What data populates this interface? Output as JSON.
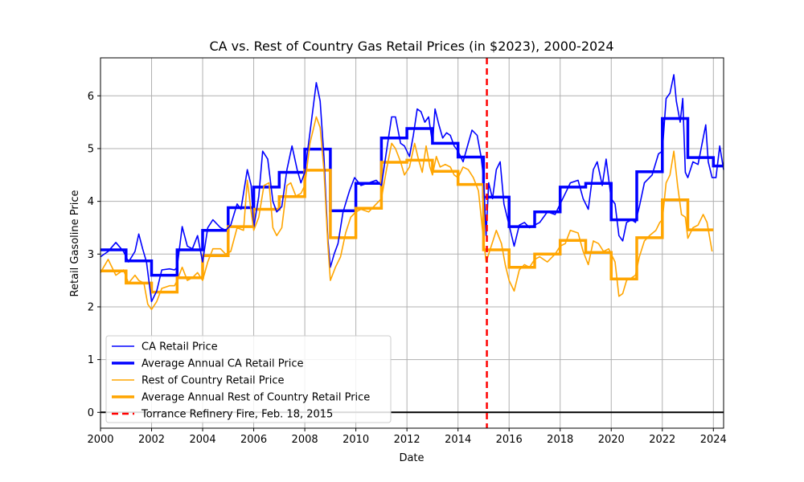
{
  "chart_data": {
    "type": "line",
    "title": "CA vs. Rest of Country Gas Retail Prices (in $2023), 2000-2024",
    "xlabel": "Date",
    "ylabel": "Retail Gasoline Price",
    "xlim": [
      2000,
      2024.4
    ],
    "ylim": [
      -0.3,
      6.72
    ],
    "x_ticks": [
      2000,
      2002,
      2004,
      2006,
      2008,
      2010,
      2012,
      2014,
      2016,
      2018,
      2020,
      2022,
      2024
    ],
    "y_ticks": [
      0,
      1,
      2,
      3,
      4,
      5,
      6
    ],
    "grid": true,
    "legend_location": "lower-left",
    "colors": {
      "ca": "#0000ff",
      "roc": "#ffa500",
      "fire": "#ff0000",
      "zero": "#000000"
    },
    "series": [
      {
        "name": "CA Retail Price",
        "style": "monthly",
        "color": "#0000ff",
        "points": [
          [
            2000.0,
            2.95
          ],
          [
            2000.3,
            3.05
          ],
          [
            2000.6,
            3.22
          ],
          [
            2000.9,
            3.05
          ],
          [
            2001.1,
            2.85
          ],
          [
            2001.35,
            3.05
          ],
          [
            2001.5,
            3.38
          ],
          [
            2001.65,
            3.1
          ],
          [
            2001.8,
            2.85
          ],
          [
            2002.0,
            2.1
          ],
          [
            2002.2,
            2.3
          ],
          [
            2002.4,
            2.7
          ],
          [
            2002.7,
            2.72
          ],
          [
            2002.9,
            2.7
          ],
          [
            2003.0,
            2.75
          ],
          [
            2003.2,
            3.52
          ],
          [
            2003.4,
            3.15
          ],
          [
            2003.6,
            3.1
          ],
          [
            2003.8,
            3.35
          ],
          [
            2004.0,
            2.85
          ],
          [
            2004.2,
            3.5
          ],
          [
            2004.4,
            3.65
          ],
          [
            2004.7,
            3.5
          ],
          [
            2004.9,
            3.45
          ],
          [
            2005.1,
            3.55
          ],
          [
            2005.35,
            3.95
          ],
          [
            2005.5,
            3.85
          ],
          [
            2005.75,
            4.6
          ],
          [
            2005.9,
            4.3
          ],
          [
            2006.0,
            3.5
          ],
          [
            2006.2,
            4.1
          ],
          [
            2006.35,
            4.95
          ],
          [
            2006.55,
            4.8
          ],
          [
            2006.75,
            4.0
          ],
          [
            2006.9,
            3.8
          ],
          [
            2007.1,
            3.9
          ],
          [
            2007.3,
            4.6
          ],
          [
            2007.5,
            5.05
          ],
          [
            2007.7,
            4.6
          ],
          [
            2007.85,
            4.35
          ],
          [
            2008.0,
            4.55
          ],
          [
            2008.2,
            5.3
          ],
          [
            2008.45,
            6.25
          ],
          [
            2008.6,
            5.9
          ],
          [
            2008.75,
            4.85
          ],
          [
            2008.9,
            3.3
          ],
          [
            2009.0,
            2.75
          ],
          [
            2009.15,
            3.0
          ],
          [
            2009.3,
            3.2
          ],
          [
            2009.5,
            3.8
          ],
          [
            2009.75,
            4.2
          ],
          [
            2009.95,
            4.45
          ],
          [
            2010.2,
            4.3
          ],
          [
            2010.5,
            4.35
          ],
          [
            2010.8,
            4.4
          ],
          [
            2011.0,
            4.3
          ],
          [
            2011.2,
            4.95
          ],
          [
            2011.4,
            5.6
          ],
          [
            2011.55,
            5.6
          ],
          [
            2011.75,
            5.1
          ],
          [
            2011.9,
            5.05
          ],
          [
            2012.1,
            4.85
          ],
          [
            2012.25,
            5.25
          ],
          [
            2012.4,
            5.75
          ],
          [
            2012.55,
            5.7
          ],
          [
            2012.7,
            5.5
          ],
          [
            2012.85,
            5.6
          ],
          [
            2013.0,
            5.1
          ],
          [
            2013.1,
            5.75
          ],
          [
            2013.25,
            5.45
          ],
          [
            2013.4,
            5.2
          ],
          [
            2013.55,
            5.3
          ],
          [
            2013.7,
            5.25
          ],
          [
            2013.85,
            5.05
          ],
          [
            2014.0,
            4.95
          ],
          [
            2014.2,
            4.75
          ],
          [
            2014.4,
            5.1
          ],
          [
            2014.55,
            5.35
          ],
          [
            2014.75,
            5.25
          ],
          [
            2014.9,
            4.85
          ],
          [
            2015.0,
            4.45
          ],
          [
            2015.1,
            3.35
          ],
          [
            2015.2,
            4.35
          ],
          [
            2015.35,
            4.05
          ],
          [
            2015.5,
            4.6
          ],
          [
            2015.65,
            4.75
          ],
          [
            2015.8,
            3.95
          ],
          [
            2016.0,
            3.55
          ],
          [
            2016.2,
            3.15
          ],
          [
            2016.4,
            3.55
          ],
          [
            2016.6,
            3.6
          ],
          [
            2016.8,
            3.5
          ],
          [
            2017.0,
            3.55
          ],
          [
            2017.2,
            3.6
          ],
          [
            2017.5,
            3.8
          ],
          [
            2017.8,
            3.75
          ],
          [
            2018.0,
            3.95
          ],
          [
            2018.2,
            4.15
          ],
          [
            2018.4,
            4.35
          ],
          [
            2018.7,
            4.4
          ],
          [
            2018.9,
            4.05
          ],
          [
            2019.1,
            3.85
          ],
          [
            2019.3,
            4.6
          ],
          [
            2019.45,
            4.75
          ],
          [
            2019.65,
            4.3
          ],
          [
            2019.8,
            4.8
          ],
          [
            2020.0,
            4.05
          ],
          [
            2020.15,
            3.95
          ],
          [
            2020.3,
            3.35
          ],
          [
            2020.45,
            3.25
          ],
          [
            2020.6,
            3.6
          ],
          [
            2020.8,
            3.65
          ],
          [
            2020.95,
            3.6
          ],
          [
            2021.1,
            3.9
          ],
          [
            2021.3,
            4.35
          ],
          [
            2021.6,
            4.5
          ],
          [
            2021.85,
            4.9
          ],
          [
            2022.0,
            4.95
          ],
          [
            2022.15,
            5.95
          ],
          [
            2022.3,
            6.05
          ],
          [
            2022.45,
            6.4
          ],
          [
            2022.55,
            5.9
          ],
          [
            2022.7,
            5.5
          ],
          [
            2022.8,
            5.95
          ],
          [
            2022.9,
            4.55
          ],
          [
            2023.0,
            4.45
          ],
          [
            2023.2,
            4.75
          ],
          [
            2023.4,
            4.7
          ],
          [
            2023.6,
            5.2
          ],
          [
            2023.7,
            5.45
          ],
          [
            2023.8,
            4.75
          ],
          [
            2023.95,
            4.45
          ],
          [
            2024.1,
            4.45
          ],
          [
            2024.25,
            5.05
          ],
          [
            2024.4,
            4.6
          ]
        ]
      },
      {
        "name": "Average Annual CA Retail Price",
        "style": "step",
        "color": "#0000ff",
        "values": [
          3.08,
          2.87,
          2.6,
          3.08,
          3.45,
          3.88,
          4.27,
          4.55,
          4.99,
          3.82,
          4.34,
          5.2,
          5.38,
          5.1,
          4.84,
          4.08,
          3.52,
          3.8,
          4.27,
          4.34,
          3.65,
          4.56,
          5.57,
          4.83,
          4.67
        ]
      },
      {
        "name": "Rest of Country Retail Price",
        "style": "monthly",
        "color": "#ffa500",
        "points": [
          [
            2000.0,
            2.65
          ],
          [
            2000.3,
            2.9
          ],
          [
            2000.6,
            2.6
          ],
          [
            2000.9,
            2.7
          ],
          [
            2001.1,
            2.45
          ],
          [
            2001.35,
            2.6
          ],
          [
            2001.5,
            2.5
          ],
          [
            2001.7,
            2.45
          ],
          [
            2001.85,
            2.05
          ],
          [
            2002.0,
            1.95
          ],
          [
            2002.2,
            2.1
          ],
          [
            2002.4,
            2.35
          ],
          [
            2002.7,
            2.4
          ],
          [
            2002.9,
            2.4
          ],
          [
            2003.0,
            2.5
          ],
          [
            2003.2,
            2.75
          ],
          [
            2003.4,
            2.5
          ],
          [
            2003.6,
            2.55
          ],
          [
            2003.8,
            2.65
          ],
          [
            2004.0,
            2.5
          ],
          [
            2004.2,
            2.85
          ],
          [
            2004.4,
            3.1
          ],
          [
            2004.7,
            3.1
          ],
          [
            2004.9,
            3.0
          ],
          [
            2005.1,
            3.05
          ],
          [
            2005.35,
            3.5
          ],
          [
            2005.6,
            3.45
          ],
          [
            2005.75,
            4.4
          ],
          [
            2005.9,
            3.8
          ],
          [
            2006.0,
            3.45
          ],
          [
            2006.2,
            3.7
          ],
          [
            2006.4,
            4.3
          ],
          [
            2006.6,
            4.35
          ],
          [
            2006.75,
            3.5
          ],
          [
            2006.9,
            3.35
          ],
          [
            2007.1,
            3.5
          ],
          [
            2007.3,
            4.3
          ],
          [
            2007.45,
            4.35
          ],
          [
            2007.65,
            4.1
          ],
          [
            2007.85,
            4.15
          ],
          [
            2008.0,
            4.3
          ],
          [
            2008.2,
            5.1
          ],
          [
            2008.45,
            5.6
          ],
          [
            2008.6,
            5.4
          ],
          [
            2008.75,
            4.6
          ],
          [
            2008.9,
            3.2
          ],
          [
            2009.0,
            2.5
          ],
          [
            2009.2,
            2.75
          ],
          [
            2009.4,
            2.95
          ],
          [
            2009.6,
            3.4
          ],
          [
            2009.8,
            3.7
          ],
          [
            2010.0,
            3.8
          ],
          [
            2010.2,
            3.85
          ],
          [
            2010.5,
            3.8
          ],
          [
            2010.8,
            3.95
          ],
          [
            2011.0,
            4.05
          ],
          [
            2011.2,
            4.6
          ],
          [
            2011.4,
            5.1
          ],
          [
            2011.55,
            5.0
          ],
          [
            2011.75,
            4.75
          ],
          [
            2011.9,
            4.5
          ],
          [
            2012.1,
            4.65
          ],
          [
            2012.3,
            5.1
          ],
          [
            2012.45,
            4.8
          ],
          [
            2012.6,
            4.55
          ],
          [
            2012.75,
            5.05
          ],
          [
            2012.9,
            4.65
          ],
          [
            2013.0,
            4.5
          ],
          [
            2013.15,
            4.85
          ],
          [
            2013.3,
            4.65
          ],
          [
            2013.5,
            4.7
          ],
          [
            2013.7,
            4.65
          ],
          [
            2013.85,
            4.5
          ],
          [
            2014.0,
            4.45
          ],
          [
            2014.2,
            4.65
          ],
          [
            2014.4,
            4.6
          ],
          [
            2014.6,
            4.45
          ],
          [
            2014.8,
            4.2
          ],
          [
            2014.95,
            3.5
          ],
          [
            2015.1,
            2.85
          ],
          [
            2015.3,
            3.15
          ],
          [
            2015.5,
            3.45
          ],
          [
            2015.7,
            3.2
          ],
          [
            2015.85,
            2.8
          ],
          [
            2016.0,
            2.5
          ],
          [
            2016.2,
            2.3
          ],
          [
            2016.4,
            2.7
          ],
          [
            2016.6,
            2.8
          ],
          [
            2016.8,
            2.75
          ],
          [
            2017.0,
            2.9
          ],
          [
            2017.2,
            2.95
          ],
          [
            2017.5,
            2.85
          ],
          [
            2017.8,
            3.0
          ],
          [
            2018.0,
            3.15
          ],
          [
            2018.2,
            3.2
          ],
          [
            2018.4,
            3.45
          ],
          [
            2018.7,
            3.4
          ],
          [
            2018.9,
            3.05
          ],
          [
            2019.1,
            2.8
          ],
          [
            2019.3,
            3.25
          ],
          [
            2019.5,
            3.2
          ],
          [
            2019.7,
            3.05
          ],
          [
            2019.9,
            3.1
          ],
          [
            2020.0,
            3.0
          ],
          [
            2020.15,
            2.85
          ],
          [
            2020.3,
            2.2
          ],
          [
            2020.45,
            2.25
          ],
          [
            2020.6,
            2.5
          ],
          [
            2020.8,
            2.55
          ],
          [
            2020.95,
            2.6
          ],
          [
            2021.1,
            2.95
          ],
          [
            2021.3,
            3.25
          ],
          [
            2021.5,
            3.35
          ],
          [
            2021.75,
            3.45
          ],
          [
            2021.9,
            3.6
          ],
          [
            2022.0,
            3.65
          ],
          [
            2022.15,
            4.35
          ],
          [
            2022.3,
            4.5
          ],
          [
            2022.45,
            4.95
          ],
          [
            2022.6,
            4.3
          ],
          [
            2022.75,
            3.75
          ],
          [
            2022.9,
            3.7
          ],
          [
            2023.0,
            3.3
          ],
          [
            2023.2,
            3.5
          ],
          [
            2023.4,
            3.55
          ],
          [
            2023.6,
            3.75
          ],
          [
            2023.75,
            3.6
          ],
          [
            2023.95,
            3.05
          ]
        ]
      },
      {
        "name": "Average Annual Rest of Country Retail Price",
        "style": "step",
        "color": "#ffa500",
        "values": [
          2.68,
          2.45,
          2.28,
          2.55,
          2.97,
          3.52,
          3.85,
          4.09,
          4.59,
          3.31,
          3.87,
          4.74,
          4.78,
          4.57,
          4.32,
          3.08,
          2.75,
          3.0,
          3.26,
          3.03,
          2.53,
          3.31,
          4.03,
          3.46
        ]
      },
      {
        "name": "Torrance Refinery Fire, Feb. 18, 2015",
        "style": "vline",
        "color": "#ff0000",
        "x": 2015.13
      }
    ]
  }
}
